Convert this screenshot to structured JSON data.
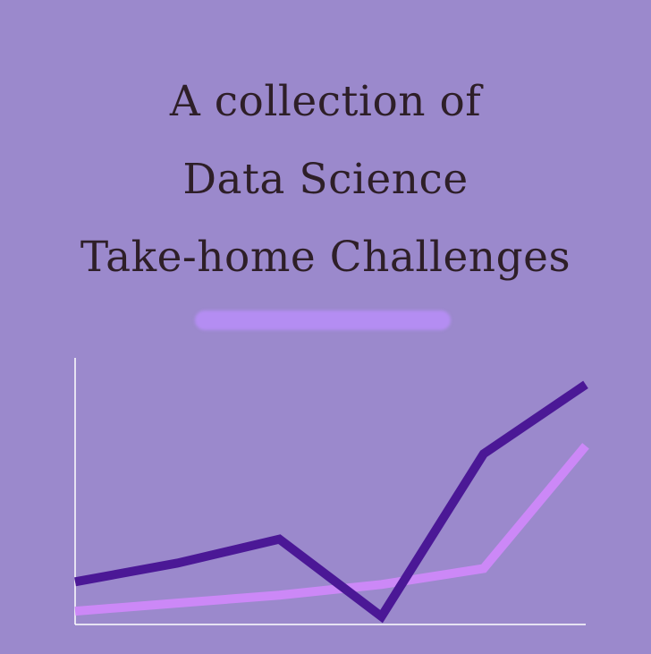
{
  "title_lines": [
    "A collection of",
    "Data Science",
    "Take-home Challenges"
  ],
  "colors": {
    "background": "#9b89cc",
    "title_text": "#2e1f28",
    "divider": "#b48df2",
    "axis": "#ffffff",
    "series_dark": "#4b1896",
    "series_light": "#cc88f7"
  },
  "chart_data": {
    "type": "line",
    "title": "",
    "xlabel": "",
    "ylabel": "",
    "x": [
      0,
      1,
      2,
      3,
      4,
      5
    ],
    "ylim": [
      0,
      100
    ],
    "grid": false,
    "series": [
      {
        "values": [
          16,
          23,
          32,
          3,
          64,
          90
        ]
      },
      {
        "values": [
          5,
          8,
          11,
          15,
          21,
          67
        ]
      }
    ]
  }
}
